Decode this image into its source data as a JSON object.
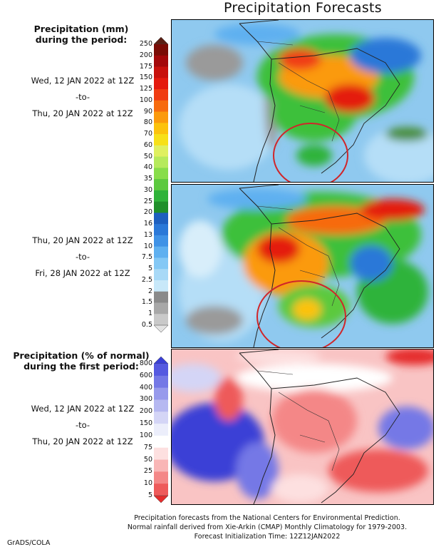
{
  "title": "Precipitation Forecasts",
  "panel1": {
    "heading": [
      "Precipitation (mm)",
      "during the period:"
    ],
    "period": [
      "Wed, 12 JAN 2022 at 12Z",
      "-to-",
      "Thu, 20 JAN 2022 at 12Z"
    ]
  },
  "panel2": {
    "period": [
      "Thu, 20 JAN 2022 at 12Z",
      "-to-",
      "Fri, 28 JAN 2022 at 12Z"
    ]
  },
  "panel3": {
    "heading": [
      "Precipitation (% of normal)",
      "during the first period:"
    ],
    "period": [
      "Wed, 12 JAN 2022 at 12Z",
      "-to-",
      "Thu, 20 JAN 2022 at 12Z"
    ]
  },
  "precip_scale": {
    "labels": [
      "250",
      "200",
      "175",
      "150",
      "125",
      "100",
      "90",
      "80",
      "70",
      "60",
      "50",
      "40",
      "35",
      "30",
      "25",
      "20",
      "16",
      "13",
      "10",
      "7.5",
      "5",
      "2.5",
      "2",
      "1.5",
      "1",
      "0.5"
    ],
    "colors": [
      "#5a1f14",
      "#7a0c06",
      "#a3080a",
      "#c8100c",
      "#e41a0e",
      "#f03c12",
      "#f76b0e",
      "#fb9a0c",
      "#fcc20c",
      "#f7e018",
      "#dff060",
      "#b6ea5c",
      "#88dd4a",
      "#5cc93e",
      "#2fb33a",
      "#1f8f2a",
      "#1d5fbf",
      "#2a78d8",
      "#3f92e6",
      "#5fb0f0",
      "#84c8f5",
      "#a8d9f7",
      "#c8e8f9",
      "#8a8a8a",
      "#a8a8a8",
      "#c9c9c9",
      "#e3e3e3"
    ]
  },
  "anomaly_scale": {
    "labels": [
      "800",
      "600",
      "400",
      "300",
      "200",
      "150",
      "100",
      "75",
      "50",
      "25",
      "10",
      "5"
    ],
    "colors": [
      "#3a3fd6",
      "#5559e0",
      "#7478e6",
      "#979aec",
      "#b6b8f1",
      "#d4d5f6",
      "#eceefb",
      "#ffffff",
      "#fde0e0",
      "#f9b6b6",
      "#f48787",
      "#ee5a5a",
      "#e52c2c"
    ]
  },
  "footer": {
    "lines": [
      "Precipitation forecasts from the National Centers for Environmental Prediction.",
      "Normal rainfall derived from Xie-Arkin (CMAP) Monthly Climatology for 1979-2003.",
      "Forecast Initialization Time: 12Z12JAN2022"
    ]
  },
  "credit": "GrADS/COLA"
}
